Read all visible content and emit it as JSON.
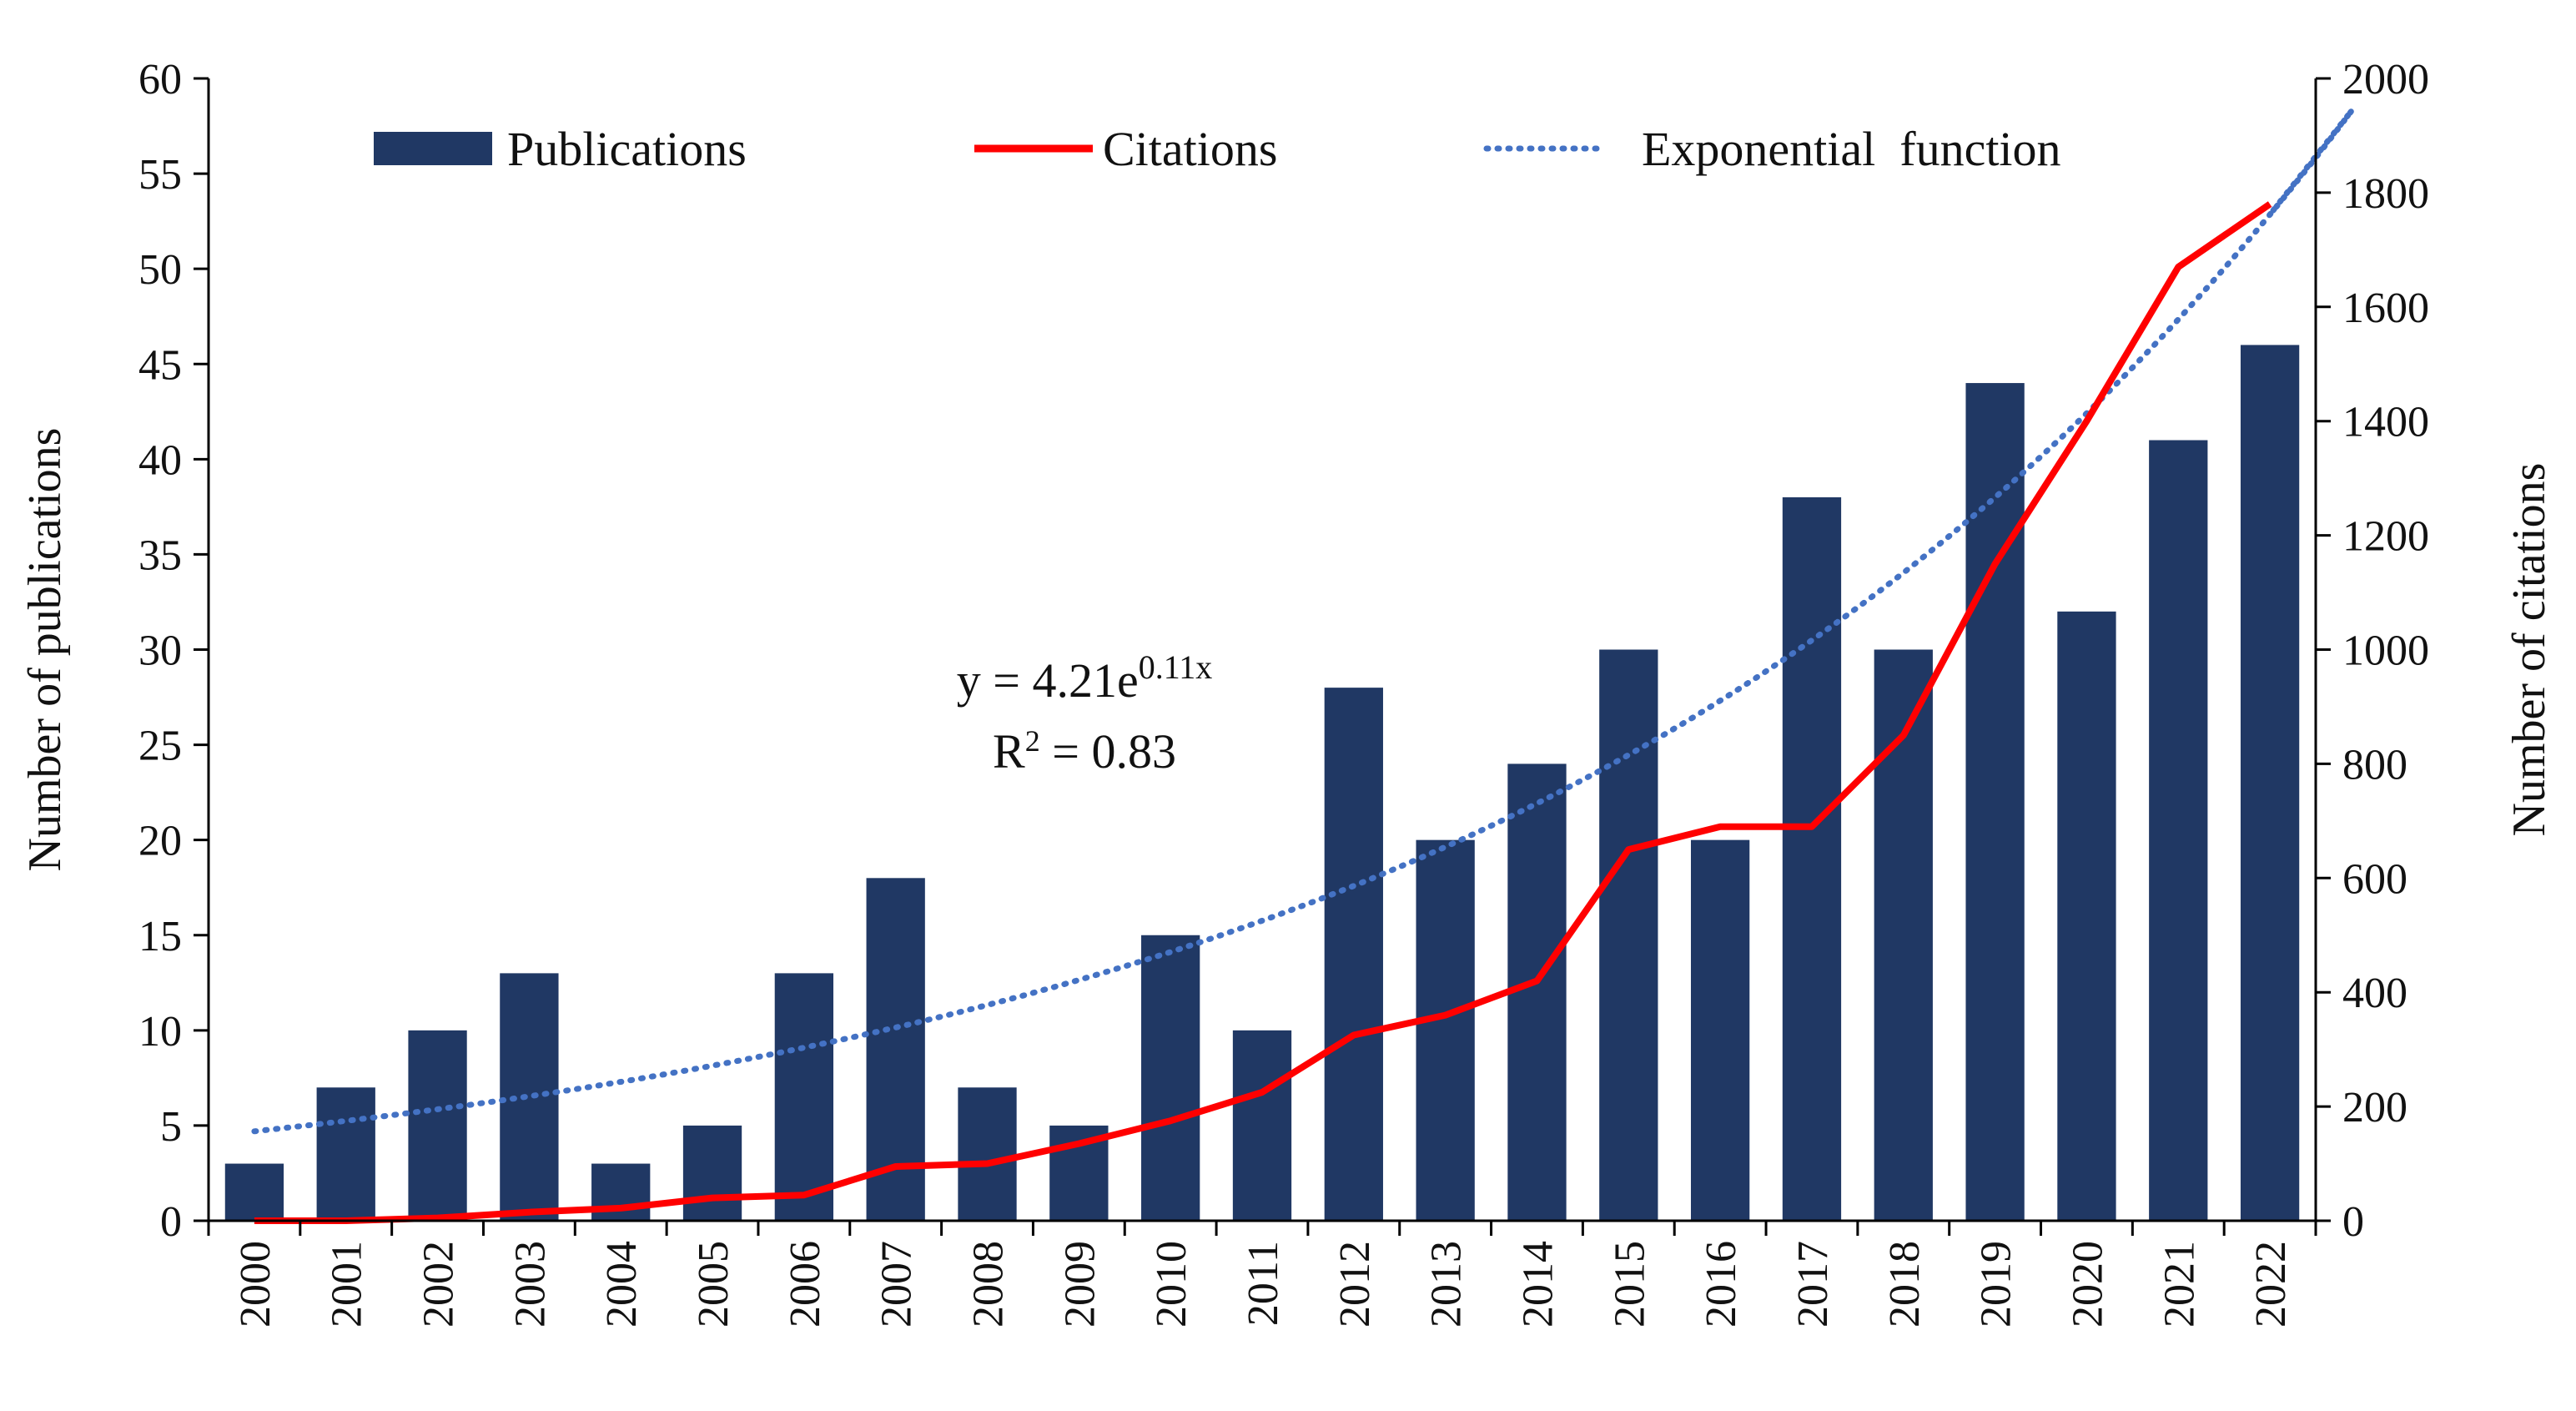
{
  "chart_data": {
    "type": "bar",
    "categories": [
      "2000",
      "2001",
      "2002",
      "2003",
      "2004",
      "2005",
      "2006",
      "2007",
      "2008",
      "2009",
      "2010",
      "2011",
      "2012",
      "2013",
      "2014",
      "2015",
      "2016",
      "2017",
      "2018",
      "2019",
      "2020",
      "2021",
      "2022"
    ],
    "series": [
      {
        "name": "Publications",
        "type": "bar",
        "axis": "left",
        "color": "#203864",
        "values": [
          3,
          7,
          10,
          13,
          3,
          5,
          13,
          18,
          7,
          5,
          15,
          10,
          28,
          20,
          24,
          30,
          20,
          38,
          30,
          44,
          32,
          41,
          46
        ]
      },
      {
        "name": "Citations",
        "type": "line",
        "axis": "right",
        "color": "#ff0000",
        "values": [
          0,
          0,
          5,
          15,
          22,
          40,
          45,
          95,
          100,
          135,
          175,
          225,
          325,
          360,
          420,
          650,
          690,
          690,
          850,
          1150,
          1400,
          1670,
          1780
        ]
      },
      {
        "name": "Exponential  function",
        "type": "trendline",
        "style": "dotted",
        "axis": "left",
        "color": "#4472c4",
        "equation": {
          "a": 4.21,
          "b": 0.11
        }
      }
    ],
    "ylabel": "Number of publications",
    "y2label": "Number of citations",
    "ylim": [
      0,
      60
    ],
    "y2lim": [
      0,
      2000
    ],
    "yticks": [
      "0",
      "5",
      "10",
      "15",
      "20",
      "25",
      "30",
      "35",
      "40",
      "45",
      "50",
      "55",
      "60"
    ],
    "y2ticks": [
      "0",
      "200",
      "400",
      "600",
      "800",
      "1000",
      "1200",
      "1400",
      "1600",
      "1800",
      "2000"
    ],
    "annotation": {
      "equation_prefix": "y = 4.21e",
      "equation_exp": "0.11x",
      "r2_prefix": "R",
      "r2_sup": "2",
      "r2_suffix": " = 0.83"
    },
    "legend_position": "top",
    "grid": false
  }
}
